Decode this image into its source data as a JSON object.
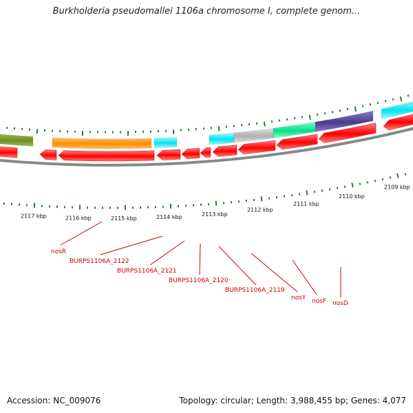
{
  "title": "Burkholderia pseudomallei 1106a chromosome I, complete genom...",
  "footer": {
    "accession": "Accession: NC_009076",
    "stats": "Topology: circular; Length: 3,988,455 bp; Genes: 4,077"
  },
  "ticks": [
    "2117 kbp",
    "2116 kbp",
    "2115 kbp",
    "2114 kbp",
    "2113 kbp",
    "2112 kbp",
    "2111 kbp",
    "2110 kbp",
    "2109 kbp"
  ],
  "gene_labels": [
    "nosR",
    "BURPS1106A_2122",
    "BURPS1106A_2121",
    "BURPS1106A_2120",
    "BURPS1106A_2119",
    "nosY",
    "nosF",
    "nosD"
  ],
  "colors": {
    "backbone": "#888888",
    "forward_gene": "#ff0000",
    "tick": "#2a7a2a",
    "label": "#cc0000",
    "olive": "#6b8e23",
    "orange": "#ff8c00",
    "cyan": "#00e5ee",
    "grey": "#b0b0b0",
    "green": "#00e08a",
    "navy": "#4b3c8c"
  }
}
